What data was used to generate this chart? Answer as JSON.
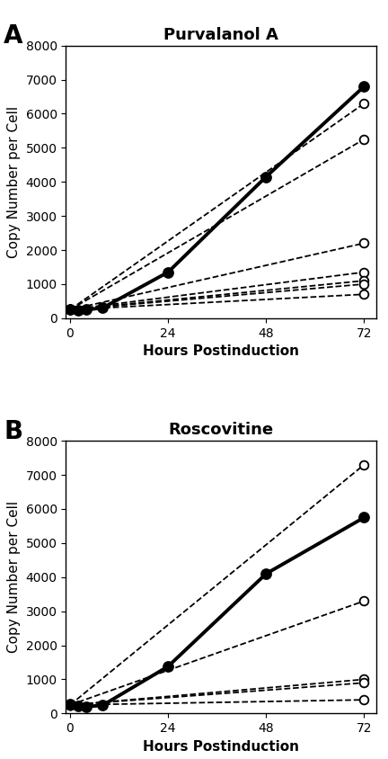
{
  "panel_A": {
    "title": "Purvalanol A",
    "solid_line": {
      "x": [
        0,
        2,
        4,
        8,
        24,
        48,
        72
      ],
      "y": [
        270,
        220,
        250,
        300,
        1350,
        4150,
        6800
      ]
    },
    "dashed_lines": [
      {
        "x": [
          0,
          72
        ],
        "y": [
          250,
          6300
        ]
      },
      {
        "x": [
          0,
          72
        ],
        "y": [
          250,
          5250
        ]
      },
      {
        "x": [
          0,
          72
        ],
        "y": [
          250,
          2200
        ]
      },
      {
        "x": [
          0,
          72
        ],
        "y": [
          250,
          1350
        ]
      },
      {
        "x": [
          0,
          72
        ],
        "y": [
          250,
          1100
        ]
      },
      {
        "x": [
          0,
          72
        ],
        "y": [
          250,
          1000
        ]
      },
      {
        "x": [
          0,
          72
        ],
        "y": [
          250,
          700
        ]
      }
    ],
    "ylabel": "Copy Number per Cell",
    "xlabel": "Hours Postinduction",
    "ylim": [
      0,
      8000
    ],
    "xlim": [
      -1,
      75
    ],
    "yticks": [
      0,
      1000,
      2000,
      3000,
      4000,
      5000,
      6000,
      7000,
      8000
    ],
    "xticks": [
      0,
      24,
      48,
      72
    ],
    "panel_label": "A"
  },
  "panel_B": {
    "title": "Roscovitine",
    "solid_line": {
      "x": [
        0,
        2,
        4,
        8,
        24,
        48,
        72
      ],
      "y": [
        270,
        220,
        200,
        240,
        1380,
        4100,
        5750
      ]
    },
    "dashed_lines": [
      {
        "x": [
          0,
          72
        ],
        "y": [
          250,
          7300
        ]
      },
      {
        "x": [
          0,
          72
        ],
        "y": [
          250,
          3300
        ]
      },
      {
        "x": [
          0,
          72
        ],
        "y": [
          250,
          1000
        ]
      },
      {
        "x": [
          0,
          72
        ],
        "y": [
          250,
          900
        ]
      },
      {
        "x": [
          0,
          72
        ],
        "y": [
          250,
          400
        ]
      }
    ],
    "ylabel": "Copy Number per Cell",
    "xlabel": "Hours Postinduction",
    "ylim": [
      0,
      8000
    ],
    "xlim": [
      -1,
      75
    ],
    "yticks": [
      0,
      1000,
      2000,
      3000,
      4000,
      5000,
      6000,
      7000,
      8000
    ],
    "xticks": [
      0,
      24,
      48,
      72
    ],
    "panel_label": "B"
  },
  "bg_color": "#ffffff",
  "solid_color": "#000000",
  "dashed_color": "#000000",
  "solid_lw": 2.8,
  "dashed_lw": 1.3,
  "marker_size_solid": 8,
  "marker_size_dashed": 7,
  "title_fontsize": 13,
  "label_fontsize": 11,
  "tick_fontsize": 10,
  "panel_label_fontsize": 20
}
